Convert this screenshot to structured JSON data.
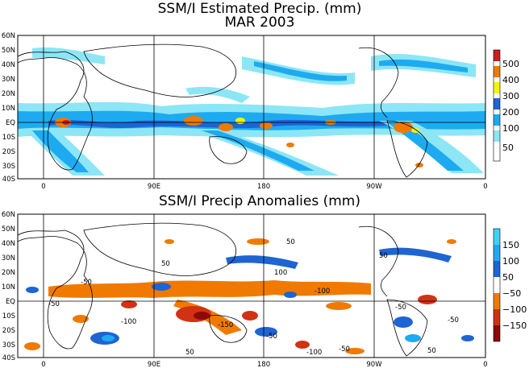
{
  "top_panel": {
    "title_line1": "SSM/I Estimated Precip. (mm)",
    "title_line2": "MAR 2003",
    "lat_labels": [
      "60N",
      "50N",
      "40N",
      "30N",
      "20N",
      "10N",
      "EQ",
      "10S",
      "20S",
      "30S",
      "40S"
    ],
    "lon_labels": [
      "0",
      "90E",
      "180",
      "90W",
      "0"
    ],
    "legend": {
      "labels": [
        "500",
        "400",
        "300",
        "200",
        "100",
        "50"
      ],
      "colors": [
        "#c81e1e",
        "#f07a00",
        "#f5f500",
        "#1e64d2",
        "#1eaaf0",
        "#8ce6f5",
        "#ffffff"
      ]
    }
  },
  "bottom_panel": {
    "title": "SSM/I Precip Anomalies (mm)",
    "lat_labels": [
      "60N",
      "50N",
      "40N",
      "30N",
      "20N",
      "10N",
      "EQ",
      "10S",
      "20S",
      "30S",
      "40S"
    ],
    "lon_labels": [
      "0",
      "90E",
      "180",
      "90W",
      "0"
    ],
    "legend": {
      "labels": [
        "150",
        "100",
        "50",
        "−50",
        "−100",
        "−150"
      ],
      "colors": [
        "#3cd2f5",
        "#1eaaf0",
        "#1e64d2",
        "#ffffff",
        "#f07a00",
        "#d23214",
        "#8c0a0a"
      ]
    },
    "contour_labels": [
      "50",
      "-50",
      "100",
      "-100",
      "50",
      "-50",
      "-150",
      "-100",
      "50",
      "-50",
      "50",
      "-50",
      "-100",
      "-50",
      "50",
      "-50"
    ]
  }
}
